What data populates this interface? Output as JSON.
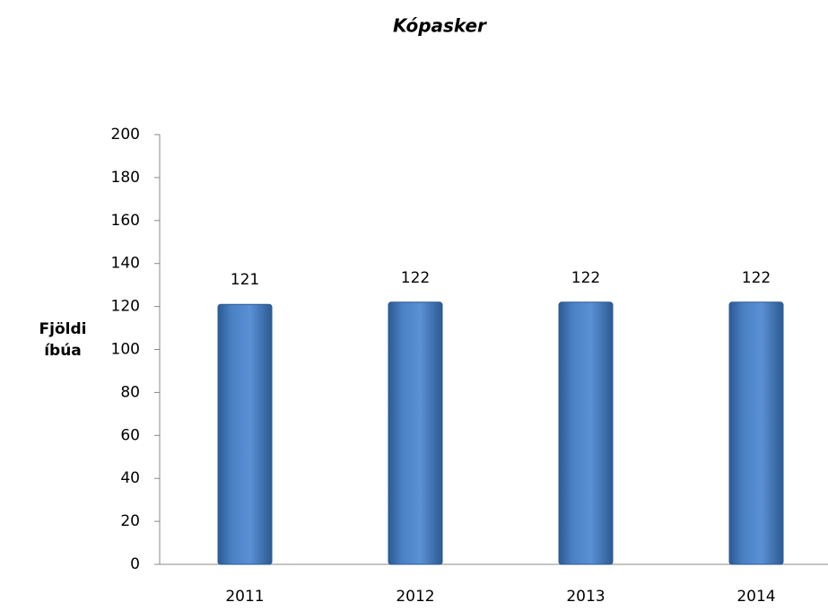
{
  "chart_data": {
    "type": "bar",
    "title": "Kópasker",
    "ylabel": "Fjöldi íbúa",
    "categories": [
      "2011",
      "2012",
      "2013",
      "2014"
    ],
    "values": [
      121,
      122,
      122,
      122
    ],
    "color": "#4a7ebb",
    "ylim": [
      0,
      200
    ],
    "yticks": [
      0,
      20,
      40,
      60,
      80,
      100,
      120,
      140,
      160,
      180,
      200
    ]
  }
}
